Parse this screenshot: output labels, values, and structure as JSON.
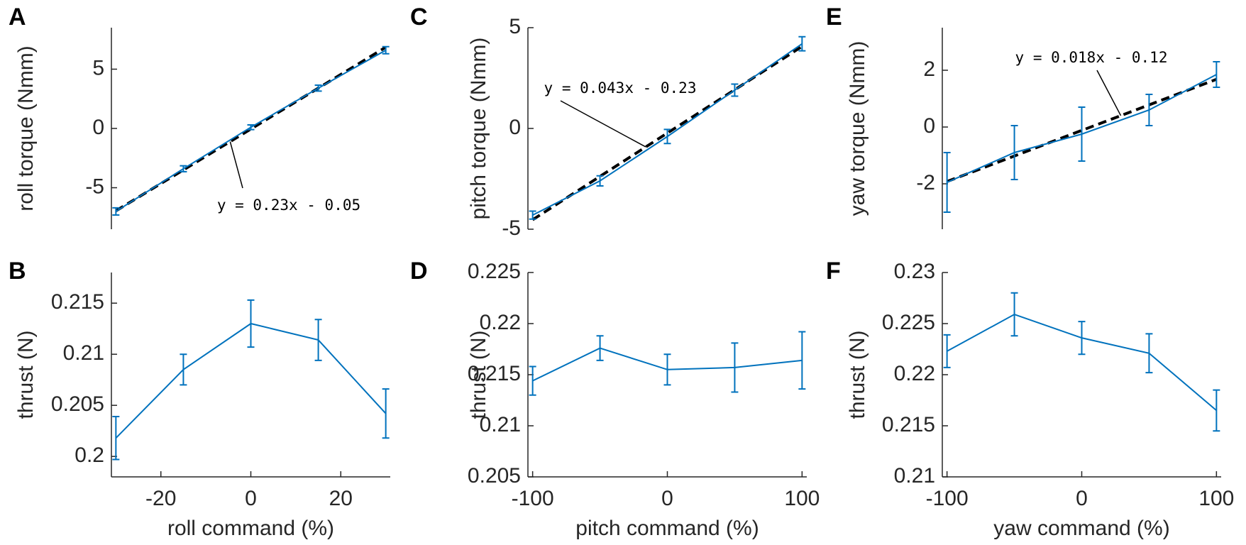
{
  "chart_data": [
    {
      "panel": "A",
      "type": "line",
      "y_label": "roll torque (Nmm)",
      "x": [
        -30,
        -15,
        0,
        15,
        30
      ],
      "values": [
        -7.0,
        -3.4,
        0.1,
        3.4,
        6.6
      ],
      "errors": [
        0.3,
        0.25,
        0.2,
        0.25,
        0.3
      ],
      "color": "#0072bd",
      "xlim": [
        -31,
        31
      ],
      "ylim": [
        -8.5,
        8.5
      ],
      "yticks": [
        -5,
        0,
        5
      ],
      "fit": {
        "label": "y = 0.23x - 0.05",
        "slope": 0.23,
        "intercept": -0.05,
        "color": "#000000"
      }
    },
    {
      "panel": "B",
      "type": "line",
      "y_label": "thrust (N)",
      "x_label": "roll command (%)",
      "x": [
        -30,
        -15,
        0,
        15,
        30
      ],
      "values": [
        0.2018,
        0.2085,
        0.213,
        0.2114,
        0.2042
      ],
      "errors": [
        0.0021,
        0.0015,
        0.0023,
        0.002,
        0.0024
      ],
      "color": "#0072bd",
      "xlim": [
        -31,
        31
      ],
      "xticks": [
        -20,
        0,
        20
      ],
      "ylim": [
        0.198,
        0.218
      ],
      "yticks": [
        0.2,
        0.205,
        0.21,
        0.215
      ]
    },
    {
      "panel": "C",
      "type": "line",
      "y_label": "pitch torque (Nmm)",
      "x": [
        -100,
        -50,
        0,
        50,
        100
      ],
      "values": [
        -4.3,
        -2.6,
        -0.4,
        1.9,
        4.2
      ],
      "errors": [
        0.2,
        0.25,
        0.35,
        0.3,
        0.35
      ],
      "color": "#0072bd",
      "xlim": [
        -103.5,
        103.5
      ],
      "ylim": [
        -5,
        5
      ],
      "yticks": [
        -5,
        0,
        5
      ],
      "fit": {
        "label": "y = 0.043x - 0.23",
        "slope": 0.043,
        "intercept": -0.23,
        "color": "#000000"
      }
    },
    {
      "panel": "D",
      "type": "line",
      "y_label": "thrust (N)",
      "x_label": "pitch command (%)",
      "x": [
        -100,
        -50,
        0,
        50,
        100
      ],
      "values": [
        0.2144,
        0.2176,
        0.2155,
        0.2157,
        0.2164
      ],
      "errors": [
        0.0014,
        0.0012,
        0.0015,
        0.0024,
        0.0028
      ],
      "color": "#0072bd",
      "xlim": [
        -103.5,
        103.5
      ],
      "xticks": [
        -100,
        0,
        100
      ],
      "ylim": [
        0.205,
        0.225
      ],
      "yticks": [
        0.205,
        0.21,
        0.215,
        0.22,
        0.225
      ]
    },
    {
      "panel": "E",
      "type": "line",
      "y_label": "yaw torque (Nmm)",
      "x": [
        -100,
        -50,
        0,
        50,
        100
      ],
      "values": [
        -1.95,
        -0.9,
        -0.25,
        0.6,
        1.85
      ],
      "errors": [
        1.05,
        0.95,
        0.95,
        0.55,
        0.45
      ],
      "color": "#0072bd",
      "xlim": [
        -103.5,
        103.5
      ],
      "ylim": [
        -3.6,
        3.5
      ],
      "yticks": [
        -2,
        0,
        2
      ],
      "fit": {
        "label": "y = 0.018x - 0.12",
        "slope": 0.018,
        "intercept": -0.12,
        "color": "#000000"
      }
    },
    {
      "panel": "F",
      "type": "line",
      "y_label": "thrust (N)",
      "x_label": "yaw command (%)",
      "x": [
        -100,
        -50,
        0,
        50,
        100
      ],
      "values": [
        0.2223,
        0.2259,
        0.2236,
        0.2221,
        0.2165
      ],
      "errors": [
        0.0016,
        0.0021,
        0.0016,
        0.0019,
        0.002
      ],
      "color": "#0072bd",
      "xlim": [
        -103.5,
        103.5
      ],
      "xticks": [
        -100,
        0,
        100
      ],
      "ylim": [
        0.21,
        0.23
      ],
      "yticks": [
        0.21,
        0.215,
        0.22,
        0.225,
        0.23
      ]
    }
  ]
}
